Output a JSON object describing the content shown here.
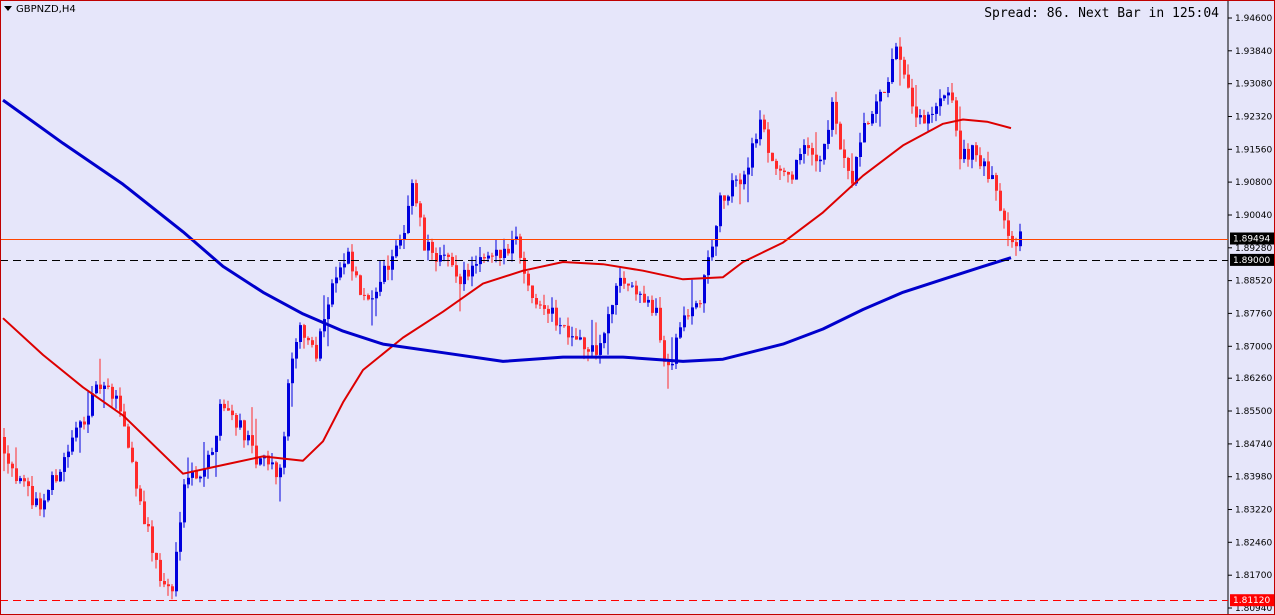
{
  "window": {
    "symbol_label": "GBPNZD,H4",
    "status_text": "Spread: 86. Next Bar in 125:04"
  },
  "colors": {
    "background": "#e6e6fa",
    "bull_candle": "#0000dd",
    "bear_candle": "#ff2a2a",
    "ma_fast": "#dd0000",
    "ma_slow": "#0000cc",
    "bid_line": "#ff4500",
    "level_dashed": "#000000",
    "low_dashed": "#ff0000"
  },
  "price_tags": {
    "bid": "1.89494",
    "level": "1.89000",
    "low": "1.81120"
  },
  "chart_data": {
    "type": "candlestick",
    "title": "GBPNZD,H4",
    "y_ticks": [
      "1.94600",
      "1.93840",
      "1.93080",
      "1.92320",
      "1.91560",
      "1.90800",
      "1.90040",
      "1.89280",
      "1.88520",
      "1.87760",
      "1.87000",
      "1.86260",
      "1.85500",
      "1.84740",
      "1.83980",
      "1.83220",
      "1.82460",
      "1.81700",
      "1.80940"
    ],
    "ylim": [
      1.8085,
      1.9495
    ],
    "horizontal_lines": [
      {
        "name": "bid",
        "value": 1.89494,
        "style": "solid"
      },
      {
        "name": "level",
        "value": 1.89,
        "style": "dashed"
      },
      {
        "name": "low",
        "value": 1.8112,
        "style": "dashed"
      }
    ],
    "price_waypoints": [
      [
        0,
        1.849
      ],
      [
        5,
        1.838
      ],
      [
        10,
        1.833
      ],
      [
        15,
        1.842
      ],
      [
        20,
        1.852
      ],
      [
        25,
        1.861
      ],
      [
        30,
        1.856
      ],
      [
        35,
        1.834
      ],
      [
        40,
        1.816
      ],
      [
        43,
        1.813
      ],
      [
        46,
        1.84
      ],
      [
        50,
        1.841
      ],
      [
        53,
        1.845
      ],
      [
        55,
        1.857
      ],
      [
        60,
        1.852
      ],
      [
        64,
        1.843
      ],
      [
        67,
        1.843
      ],
      [
        70,
        1.84
      ],
      [
        72,
        1.861
      ],
      [
        75,
        1.874
      ],
      [
        79,
        1.869
      ],
      [
        83,
        1.885
      ],
      [
        87,
        1.89
      ],
      [
        91,
        1.88
      ],
      [
        96,
        1.887
      ],
      [
        100,
        1.893
      ],
      [
        103,
        1.908
      ],
      [
        106,
        1.893
      ],
      [
        111,
        1.89
      ],
      [
        115,
        1.886
      ],
      [
        120,
        1.889
      ],
      [
        125,
        1.891
      ],
      [
        129,
        1.896
      ],
      [
        132,
        1.883
      ],
      [
        136,
        1.88
      ],
      [
        140,
        1.875
      ],
      [
        144,
        1.873
      ],
      [
        147,
        1.868
      ],
      [
        150,
        1.87
      ],
      [
        155,
        1.886
      ],
      [
        160,
        1.882
      ],
      [
        164,
        1.877
      ],
      [
        166,
        1.867
      ],
      [
        168,
        1.866
      ],
      [
        170,
        1.875
      ],
      [
        172,
        1.877
      ],
      [
        175,
        1.881
      ],
      [
        180,
        1.903
      ],
      [
        186,
        1.91
      ],
      [
        190,
        1.922
      ],
      [
        193,
        1.913
      ],
      [
        197,
        1.908
      ],
      [
        200,
        1.915
      ],
      [
        205,
        1.914
      ],
      [
        208,
        1.925
      ],
      [
        211,
        1.912
      ],
      [
        213,
        1.908
      ],
      [
        216,
        1.92
      ],
      [
        220,
        1.927
      ],
      [
        224,
        1.938
      ],
      [
        228,
        1.925
      ],
      [
        231,
        1.921
      ],
      [
        235,
        1.926
      ],
      [
        238,
        1.928
      ],
      [
        240,
        1.913
      ],
      [
        243,
        1.916
      ],
      [
        246,
        1.911
      ],
      [
        249,
        1.906
      ],
      [
        251,
        1.9
      ],
      [
        253,
        1.895
      ],
      [
        254,
        1.895
      ]
    ],
    "series": [
      {
        "name": "MA fast",
        "points": [
          [
            0,
            1.8765
          ],
          [
            10,
            1.868
          ],
          [
            20,
            1.8605
          ],
          [
            30,
            1.854
          ],
          [
            40,
            1.845
          ],
          [
            45,
            1.8405
          ],
          [
            55,
            1.8425
          ],
          [
            65,
            1.8445
          ],
          [
            75,
            1.8435
          ],
          [
            80,
            1.848
          ],
          [
            85,
            1.857
          ],
          [
            90,
            1.8645
          ],
          [
            100,
            1.872
          ],
          [
            110,
            1.878
          ],
          [
            120,
            1.8845
          ],
          [
            130,
            1.8875
          ],
          [
            140,
            1.8895
          ],
          [
            150,
            1.889
          ],
          [
            160,
            1.8875
          ],
          [
            170,
            1.8855
          ],
          [
            180,
            1.886
          ],
          [
            185,
            1.8895
          ],
          [
            195,
            1.894
          ],
          [
            205,
            1.901
          ],
          [
            215,
            1.9095
          ],
          [
            225,
            1.9165
          ],
          [
            235,
            1.9215
          ],
          [
            240,
            1.9225
          ],
          [
            246,
            1.922
          ],
          [
            252,
            1.9205
          ]
        ]
      },
      {
        "name": "MA slow",
        "points": [
          [
            0,
            1.927
          ],
          [
            15,
            1.917
          ],
          [
            30,
            1.9075
          ],
          [
            45,
            1.8965
          ],
          [
            55,
            1.8885
          ],
          [
            65,
            1.8825
          ],
          [
            75,
            1.8775
          ],
          [
            85,
            1.8735
          ],
          [
            95,
            1.8705
          ],
          [
            110,
            1.8685
          ],
          [
            125,
            1.8665
          ],
          [
            140,
            1.8675
          ],
          [
            155,
            1.8675
          ],
          [
            170,
            1.8665
          ],
          [
            180,
            1.867
          ],
          [
            195,
            1.8705
          ],
          [
            205,
            1.874
          ],
          [
            215,
            1.8785
          ],
          [
            225,
            1.8825
          ],
          [
            235,
            1.8855
          ],
          [
            245,
            1.8885
          ],
          [
            252,
            1.8905
          ]
        ]
      }
    ]
  }
}
